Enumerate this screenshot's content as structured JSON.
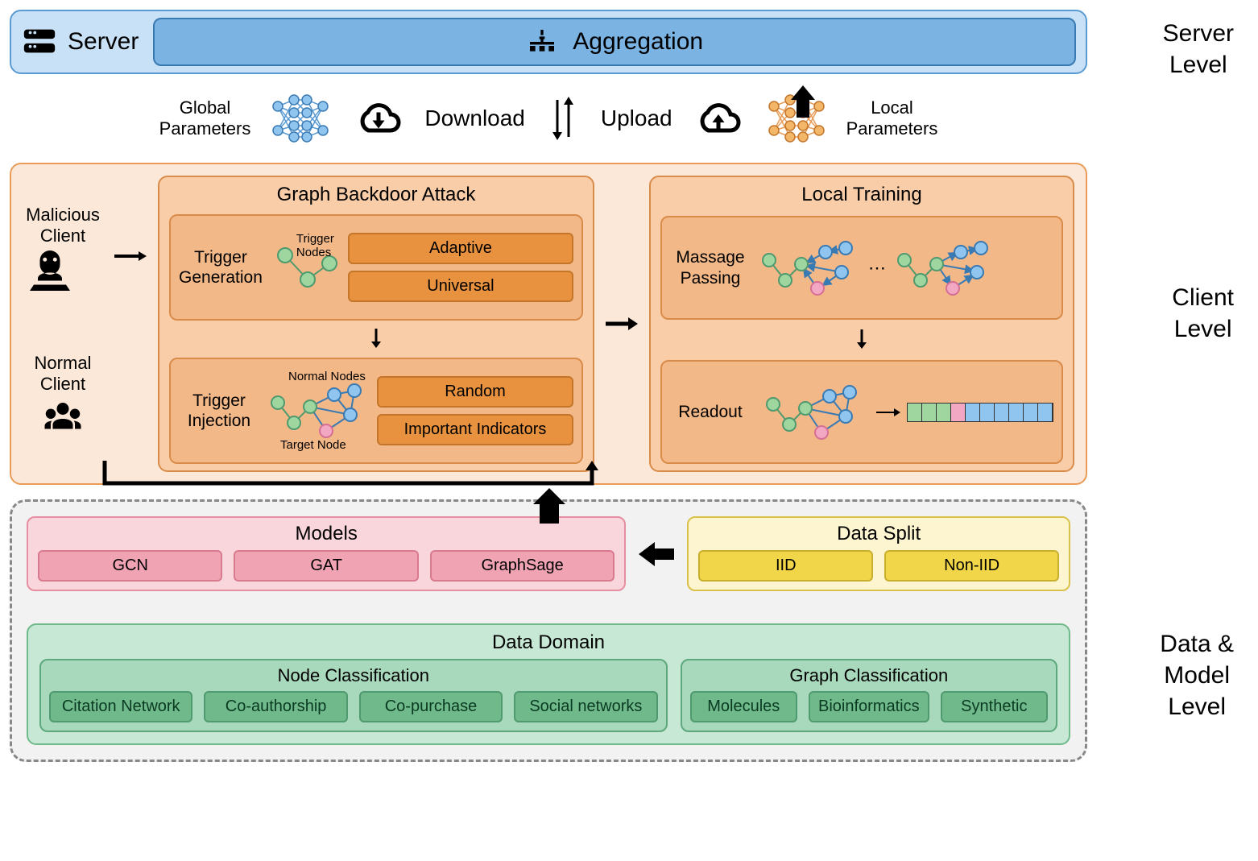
{
  "server": {
    "label": "Server",
    "aggregation": "Aggregation",
    "level_label": "Server\nLevel"
  },
  "transfer": {
    "global": "Global\nParameters",
    "download": "Download",
    "upload": "Upload",
    "local": "Local\nParameters"
  },
  "client": {
    "malicious": "Malicious\nClient",
    "normal": "Normal\nClient",
    "level_label": "Client\nLevel",
    "attack": {
      "title": "Graph Backdoor Attack",
      "gen_label": "Trigger\nGeneration",
      "gen_nodes_label": "Trigger\nNodes",
      "gen_chips": [
        "Adaptive",
        "Universal"
      ],
      "inj_label": "Trigger\nInjection",
      "inj_normal": "Normal Nodes",
      "inj_target": "Target Node",
      "inj_chips": [
        "Random",
        "Important Indicators"
      ]
    },
    "training": {
      "title": "Local Training",
      "msg_label": "Massage\nPassing",
      "readout_label": "Readout"
    },
    "feature_colors": [
      "#9fd69f",
      "#9fd69f",
      "#9fd69f",
      "#f2a7c3",
      "#8fc5ef",
      "#8fc5ef",
      "#8fc5ef",
      "#8fc5ef",
      "#8fc5ef",
      "#8fc5ef"
    ]
  },
  "dm": {
    "level_label": "Data &\nModel\nLevel",
    "models": {
      "title": "Models",
      "items": [
        "GCN",
        "GAT",
        "GraphSage"
      ]
    },
    "split": {
      "title": "Data Split",
      "items": [
        "IID",
        "Non-IID"
      ]
    },
    "domain": {
      "title": "Data Domain",
      "node": {
        "title": "Node Classification",
        "items": [
          "Citation Network",
          "Co-authorship",
          "Co-purchase",
          "Social networks"
        ]
      },
      "graph": {
        "title": "Graph Classification",
        "items": [
          "Molecules",
          "Bioinformatics",
          "Synthetic"
        ]
      }
    }
  },
  "colors": {
    "server_bg": "#c9e1f6",
    "server_border": "#5a9bd4",
    "client_bg": "#fce8d8",
    "client_border": "#e89c58",
    "orange_mid": "#f8cda8",
    "orange_deep": "#f3b887",
    "orange_chip": "#e8923f",
    "pink_bg": "#f9d5dc",
    "yellow_bg": "#fdf5cf",
    "green_bg": "#c7e8d5",
    "node_blue": "#8fc5ef",
    "node_green": "#9fd69f",
    "node_pink": "#f2a7c3",
    "node_orange": "#f3b76a"
  }
}
